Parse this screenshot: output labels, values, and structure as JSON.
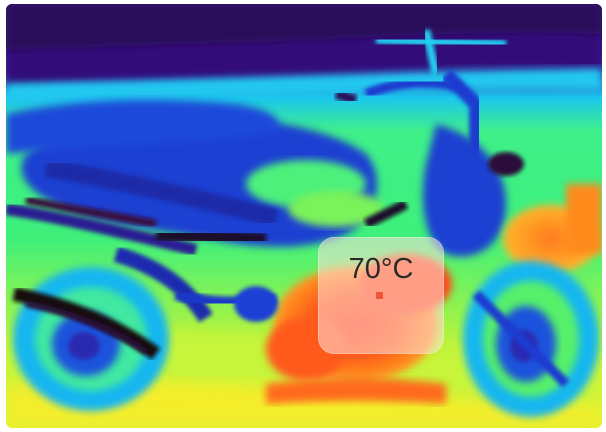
{
  "thermal_view": {
    "subject": "motorcycle-thermal-image",
    "palette": [
      "#2b0a5e",
      "#3a1f9a",
      "#1d3fd6",
      "#17b6f0",
      "#1fe8d8",
      "#46f078",
      "#c8f53a",
      "#f5ee2a",
      "#ff9a1e",
      "#ff4a1a"
    ]
  },
  "temperature_reading": {
    "label": "70°C",
    "marker_color": "#f0553a"
  }
}
